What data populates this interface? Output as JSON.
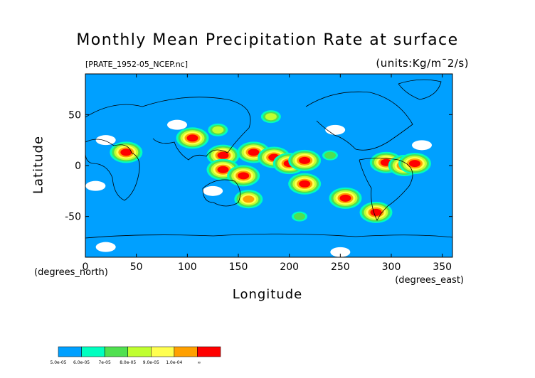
{
  "chart_data": {
    "type": "heatmap",
    "title": "Monthly Mean Precipitation Rate at surface",
    "source_label": "[PRATE_1952-05_NCEP.nc]",
    "units_label": "(units:Kg/m¯2/s)",
    "xlabel": "Longitude",
    "ylabel": "Latitude",
    "x_unit_label": "(degrees_east)",
    "y_unit_label": "(degrees_north)",
    "xlim": [
      0,
      360
    ],
    "ylim": [
      -90,
      90
    ],
    "x_ticks": [
      0,
      50,
      100,
      150,
      200,
      250,
      300,
      350
    ],
    "y_ticks": [
      -50,
      0,
      50
    ],
    "grid": false,
    "levels": [
      {
        "label": "5.0e-05",
        "color": "#00a0ff"
      },
      {
        "label": "6.0e-05",
        "color": "#00ffc0"
      },
      {
        "label": "7e-05",
        "color": "#50e050"
      },
      {
        "label": "8.0e-05",
        "color": "#c0ff30"
      },
      {
        "label": "9.0e-05",
        "color": "#ffff50"
      },
      {
        "label": "1.0e-04",
        "color": "#ffa000"
      },
      {
        "label": "∞",
        "color": "#ff0000"
      }
    ],
    "below_min_color": "#ffffff",
    "precip_regions": [
      {
        "lon": 40,
        "lat": 13,
        "level": 6
      },
      {
        "lon": 105,
        "lat": 27,
        "level": 6
      },
      {
        "lon": 135,
        "lat": 10,
        "level": 6
      },
      {
        "lon": 135,
        "lat": -4,
        "level": 6
      },
      {
        "lon": 165,
        "lat": 13,
        "level": 6
      },
      {
        "lon": 185,
        "lat": 8,
        "level": 6
      },
      {
        "lon": 200,
        "lat": 2,
        "level": 6
      },
      {
        "lon": 215,
        "lat": 5,
        "level": 6
      },
      {
        "lon": 155,
        "lat": -10,
        "level": 6
      },
      {
        "lon": 215,
        "lat": -18,
        "level": 6
      },
      {
        "lon": 255,
        "lat": -32,
        "level": 6
      },
      {
        "lon": 285,
        "lat": -46,
        "level": 6
      },
      {
        "lon": 295,
        "lat": 3,
        "level": 6
      },
      {
        "lon": 313,
        "lat": 0,
        "level": 6
      },
      {
        "lon": 323,
        "lat": 2,
        "level": 6
      },
      {
        "lon": 160,
        "lat": -33,
        "level": 5
      },
      {
        "lon": 182,
        "lat": 48,
        "level": 3
      },
      {
        "lon": 130,
        "lat": 35,
        "level": 3
      },
      {
        "lon": 210,
        "lat": -50,
        "level": 2
      },
      {
        "lon": 240,
        "lat": 10,
        "level": 2
      }
    ],
    "white_regions": [
      {
        "lon": 20,
        "lat": 25
      },
      {
        "lon": 90,
        "lat": 40
      },
      {
        "lon": 125,
        "lat": -25
      },
      {
        "lon": 245,
        "lat": 35
      },
      {
        "lon": 10,
        "lat": -20
      },
      {
        "lon": 330,
        "lat": 20
      },
      {
        "lon": 250,
        "lat": -85
      },
      {
        "lon": 20,
        "lat": -80
      }
    ]
  }
}
